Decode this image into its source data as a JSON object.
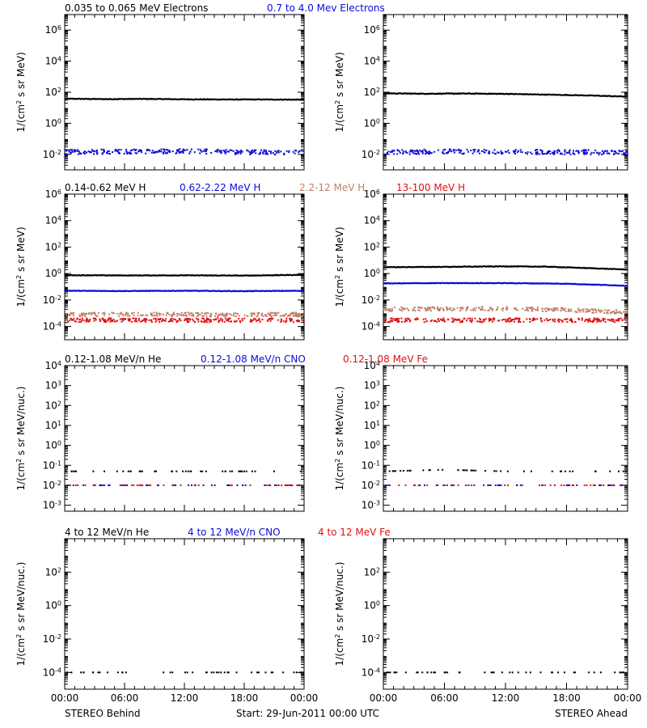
{
  "colors": {
    "black": "#000000",
    "blue": "#0a0ad8",
    "tan": "#c08068",
    "red": "#e01010"
  },
  "footer": {
    "left": "STEREO Behind",
    "center": "Start: 29-Jun-2011 00:00 UTC",
    "right": "STEREO Ahead"
  },
  "chart_data": [
    {
      "type": "scatter",
      "row": 0,
      "side": "behind",
      "legend": [
        {
          "text": "0.035 to 0.065 MeV Electrons",
          "color": "black"
        },
        {
          "text": "0.7 to 4.0 Mev Electrons",
          "color": "blue"
        }
      ],
      "ylabel": "1/(cm^2 s sr MeV)",
      "yscale": "log",
      "ylim": [
        0.001,
        10000000
      ],
      "yticks": [
        {
          "text": "10^6",
          "v": 1000000
        },
        {
          "text": "10^4",
          "v": 10000
        },
        {
          "text": "10^2",
          "v": 100
        },
        {
          "text": "10^0",
          "v": 1
        },
        {
          "text": "10^-2",
          "v": 0.01
        }
      ],
      "x": [
        0,
        24
      ],
      "xlabel_ticks": [
        "00:00",
        "06:00",
        "12:00",
        "18:00",
        "00:00"
      ],
      "series": [
        {
          "color": "black",
          "style": "line",
          "points": [
            [
              0,
              38
            ],
            [
              4,
              36
            ],
            [
              8,
              37
            ],
            [
              12,
              35
            ],
            [
              16,
              34
            ],
            [
              20,
              34
            ],
            [
              24,
              33
            ]
          ]
        },
        {
          "color": "blue",
          "style": "dots",
          "points": [
            [
              0,
              0.014
            ],
            [
              6,
              0.015
            ],
            [
              12,
              0.016
            ],
            [
              18,
              0.014
            ],
            [
              24,
              0.013
            ]
          ]
        }
      ]
    },
    {
      "type": "scatter",
      "row": 0,
      "side": "ahead",
      "ylabel": "1/(cm^2 s sr MeV)",
      "yscale": "log",
      "ylim": [
        0.001,
        10000000
      ],
      "yticks": [
        {
          "text": "10^6",
          "v": 1000000
        },
        {
          "text": "10^4",
          "v": 10000
        },
        {
          "text": "10^2",
          "v": 100
        },
        {
          "text": "10^0",
          "v": 1
        },
        {
          "text": "10^-2",
          "v": 0.01
        }
      ],
      "x": [
        0,
        24
      ],
      "xlabel_ticks": [
        "00:00",
        "06:00",
        "12:00",
        "18:00",
        "00:00"
      ],
      "series": [
        {
          "color": "black",
          "style": "line",
          "points": [
            [
              0,
              85
            ],
            [
              4,
              80
            ],
            [
              8,
              82
            ],
            [
              12,
              78
            ],
            [
              16,
              70
            ],
            [
              20,
              62
            ],
            [
              24,
              52
            ]
          ]
        },
        {
          "color": "blue",
          "style": "dots",
          "points": [
            [
              0,
              0.014
            ],
            [
              6,
              0.015
            ],
            [
              12,
              0.015
            ],
            [
              18,
              0.014
            ],
            [
              24,
              0.013
            ]
          ]
        }
      ]
    },
    {
      "type": "scatter",
      "row": 1,
      "side": "behind",
      "legend": [
        {
          "text": "0.14-0.62 MeV H",
          "color": "black"
        },
        {
          "text": "0.62-2.22 MeV H",
          "color": "blue"
        },
        {
          "text": "2.2-12 MeV H",
          "color": "tan"
        },
        {
          "text": "13-100 MeV H",
          "color": "red"
        }
      ],
      "ylabel": "1/(cm^2 s sr MeV)",
      "yscale": "log",
      "ylim": [
        1e-05,
        1000000
      ],
      "yticks": [
        {
          "text": "10^6",
          "v": 1000000
        },
        {
          "text": "10^4",
          "v": 10000
        },
        {
          "text": "10^2",
          "v": 100
        },
        {
          "text": "10^0",
          "v": 1
        },
        {
          "text": "10^-2",
          "v": 0.01
        },
        {
          "text": "10^-4",
          "v": 0.0001
        }
      ],
      "x": [
        0,
        24
      ],
      "xlabel_ticks": [
        "00:00",
        "06:00",
        "12:00",
        "18:00",
        "00:00"
      ],
      "series": [
        {
          "color": "black",
          "style": "line",
          "points": [
            [
              0,
              0.75
            ],
            [
              6,
              0.72
            ],
            [
              12,
              0.73
            ],
            [
              18,
              0.7
            ],
            [
              24,
              0.8
            ]
          ]
        },
        {
          "color": "blue",
          "style": "line",
          "points": [
            [
              0,
              0.05
            ],
            [
              6,
              0.048
            ],
            [
              12,
              0.05
            ],
            [
              18,
              0.047
            ],
            [
              24,
              0.05
            ]
          ]
        },
        {
          "color": "tan",
          "style": "dots",
          "points": [
            [
              0,
              0.0008
            ],
            [
              6,
              0.0008
            ],
            [
              12,
              0.0008
            ],
            [
              18,
              0.0008
            ],
            [
              24,
              0.0008
            ]
          ]
        },
        {
          "color": "red",
          "style": "dots",
          "points": [
            [
              0,
              0.0003
            ],
            [
              6,
              0.0003
            ],
            [
              12,
              0.0003
            ],
            [
              18,
              0.0003
            ],
            [
              24,
              0.0003
            ]
          ]
        }
      ]
    },
    {
      "type": "scatter",
      "row": 1,
      "side": "ahead",
      "ylabel": "1/(cm^2 s sr MeV)",
      "yscale": "log",
      "ylim": [
        1e-05,
        1000000
      ],
      "yticks": [
        {
          "text": "10^6",
          "v": 1000000
        },
        {
          "text": "10^4",
          "v": 10000
        },
        {
          "text": "10^2",
          "v": 100
        },
        {
          "text": "10^0",
          "v": 1
        },
        {
          "text": "10^-2",
          "v": 0.01
        },
        {
          "text": "10^-4",
          "v": 0.0001
        }
      ],
      "x": [
        0,
        24
      ],
      "xlabel_ticks": [
        "00:00",
        "06:00",
        "12:00",
        "18:00",
        "00:00"
      ],
      "series": [
        {
          "color": "black",
          "style": "line",
          "points": [
            [
              0,
              3.0
            ],
            [
              6,
              3.2
            ],
            [
              12,
              3.5
            ],
            [
              16,
              3.3
            ],
            [
              20,
              2.6
            ],
            [
              24,
              2.0
            ]
          ]
        },
        {
          "color": "blue",
          "style": "line",
          "points": [
            [
              0,
              0.18
            ],
            [
              6,
              0.19
            ],
            [
              12,
              0.19
            ],
            [
              18,
              0.17
            ],
            [
              24,
              0.12
            ]
          ]
        },
        {
          "color": "tan",
          "style": "dots",
          "points": [
            [
              0,
              0.002
            ],
            [
              6,
              0.0022
            ],
            [
              12,
              0.0022
            ],
            [
              18,
              0.0018
            ],
            [
              24,
              0.0012
            ]
          ]
        },
        {
          "color": "red",
          "style": "dots",
          "points": [
            [
              0,
              0.0003
            ],
            [
              6,
              0.0003
            ],
            [
              12,
              0.0003
            ],
            [
              18,
              0.0003
            ],
            [
              24,
              0.0003
            ]
          ]
        }
      ]
    },
    {
      "type": "scatter",
      "row": 2,
      "side": "behind",
      "legend": [
        {
          "text": "0.12-1.08 MeV/n He",
          "color": "black"
        },
        {
          "text": "0.12-1.08 MeV/n CNO",
          "color": "blue"
        },
        {
          "text": "0.12-1.08 MeV Fe",
          "color": "red"
        }
      ],
      "ylabel": "1/(cm^2 s sr MeV/nuc.)",
      "yscale": "log",
      "ylim": [
        0.0005,
        10000
      ],
      "yticks": [
        {
          "text": "10^4",
          "v": 10000
        },
        {
          "text": "10^3",
          "v": 1000
        },
        {
          "text": "10^2",
          "v": 100
        },
        {
          "text": "10^1",
          "v": 10
        },
        {
          "text": "10^0",
          "v": 1
        },
        {
          "text": "10^-1",
          "v": 0.1
        },
        {
          "text": "10^-2",
          "v": 0.01
        },
        {
          "text": "10^-3",
          "v": 0.001
        }
      ],
      "x": [
        0,
        24
      ],
      "xlabel_ticks": [
        "00:00",
        "06:00",
        "12:00",
        "18:00",
        "00:00"
      ],
      "series": [
        {
          "color": "black",
          "style": "dots",
          "points": [
            [
              0,
              0.05
            ],
            [
              6,
              0.05
            ],
            [
              12,
              0.05
            ],
            [
              18,
              0.05
            ],
            [
              24,
              0.05
            ]
          ]
        },
        {
          "color": "blue",
          "style": "dots",
          "points": [
            [
              0,
              0.01
            ],
            [
              6,
              0.01
            ],
            [
              12,
              0.01
            ],
            [
              18,
              0.01
            ],
            [
              24,
              0.01
            ]
          ]
        },
        {
          "color": "red",
          "style": "dots",
          "points": [
            [
              0,
              0.01
            ],
            [
              6,
              0.01
            ],
            [
              12,
              0.01
            ],
            [
              18,
              0.01
            ],
            [
              24,
              0.01
            ]
          ]
        }
      ]
    },
    {
      "type": "scatter",
      "row": 2,
      "side": "ahead",
      "ylabel": "1/(cm^2 s sr MeV/nuc.)",
      "yscale": "log",
      "ylim": [
        0.0005,
        10000
      ],
      "yticks": [
        {
          "text": "10^4",
          "v": 10000
        },
        {
          "text": "10^3",
          "v": 1000
        },
        {
          "text": "10^2",
          "v": 100
        },
        {
          "text": "10^1",
          "v": 10
        },
        {
          "text": "10^0",
          "v": 1
        },
        {
          "text": "10^-1",
          "v": 0.1
        },
        {
          "text": "10^-2",
          "v": 0.01
        },
        {
          "text": "10^-3",
          "v": 0.001
        }
      ],
      "x": [
        0,
        24
      ],
      "xlabel_ticks": [
        "00:00",
        "06:00",
        "12:00",
        "18:00",
        "00:00"
      ],
      "series": [
        {
          "color": "black",
          "style": "dots",
          "points": [
            [
              0,
              0.05
            ],
            [
              6,
              0.06
            ],
            [
              12,
              0.05
            ],
            [
              18,
              0.05
            ],
            [
              24,
              0.05
            ]
          ]
        },
        {
          "color": "blue",
          "style": "dots",
          "points": [
            [
              0,
              0.01
            ],
            [
              6,
              0.01
            ],
            [
              12,
              0.01
            ],
            [
              18,
              0.01
            ],
            [
              24,
              0.01
            ]
          ]
        },
        {
          "color": "red",
          "style": "dots",
          "points": [
            [
              0,
              0.01
            ],
            [
              6,
              0.01
            ],
            [
              12,
              0.01
            ],
            [
              18,
              0.01
            ],
            [
              24,
              0.01
            ]
          ]
        }
      ]
    },
    {
      "type": "scatter",
      "row": 3,
      "side": "behind",
      "legend": [
        {
          "text": "4 to 12 MeV/n He",
          "color": "black"
        },
        {
          "text": "4 to 12 MeV/n CNO",
          "color": "blue"
        },
        {
          "text": "4 to 12 MeV Fe",
          "color": "red"
        }
      ],
      "ylabel": "1/(cm^2 s sr MeV/nuc.)",
      "yscale": "log",
      "ylim": [
        1e-05,
        10000
      ],
      "yticks": [
        {
          "text": "10^2",
          "v": 100
        },
        {
          "text": "10^0",
          "v": 1
        },
        {
          "text": "10^-2",
          "v": 0.01
        },
        {
          "text": "10^-4",
          "v": 0.0001
        }
      ],
      "x": [
        0,
        24
      ],
      "xlabel_ticks": [
        "00:00",
        "06:00",
        "12:00",
        "18:00",
        "00:00"
      ],
      "series": [
        {
          "color": "black",
          "style": "dots",
          "points": [
            [
              0,
              0.0001
            ],
            [
              6,
              0.0001
            ],
            [
              12,
              0.0001
            ],
            [
              18,
              0.0001
            ],
            [
              24,
              0.0001
            ]
          ]
        }
      ]
    },
    {
      "type": "scatter",
      "row": 3,
      "side": "ahead",
      "ylabel": "1/(cm^2 s sr MeV/nuc.)",
      "yscale": "log",
      "ylim": [
        1e-05,
        10000
      ],
      "yticks": [
        {
          "text": "10^2",
          "v": 100
        },
        {
          "text": "10^0",
          "v": 1
        },
        {
          "text": "10^-2",
          "v": 0.01
        },
        {
          "text": "10^-4",
          "v": 0.0001
        }
      ],
      "x": [
        0,
        24
      ],
      "xlabel_ticks": [
        "00:00",
        "06:00",
        "12:00",
        "18:00",
        "00:00"
      ],
      "series": [
        {
          "color": "black",
          "style": "dots",
          "points": [
            [
              0,
              0.0001
            ],
            [
              6,
              0.0001
            ],
            [
              12,
              0.0001
            ],
            [
              18,
              0.0001
            ],
            [
              24,
              0.0001
            ]
          ]
        }
      ]
    }
  ]
}
